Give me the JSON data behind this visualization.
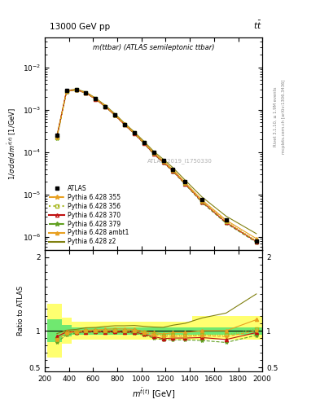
{
  "title_left": "13000 GeV pp",
  "title_right": "tt",
  "watermark": "ATLAS_2019_I1750330",
  "rivet_label": "Rivet 3.1.10, ≥ 1.9M events",
  "mcplots_label": "mcplots.cern.ch [arXiv:1306.3436]",
  "obs_label": "m(ttbar) (ATLAS semileptonic ttbar)",
  "xlabel": "m^{tbar(t)} [GeV]",
  "ylabel": "1/σ dσ/d m^{tbar(t)} [1/GeV]",
  "ratio_ylabel": "Ratio to ATLAS",
  "x_data": [
    300,
    380,
    460,
    540,
    620,
    700,
    780,
    860,
    940,
    1020,
    1100,
    1180,
    1260,
    1360,
    1500,
    1700,
    1950
  ],
  "atlas_y": [
    0.00025,
    0.0028,
    0.003,
    0.0025,
    0.0018,
    0.0012,
    0.00075,
    0.00045,
    0.00028,
    0.00017,
    0.0001,
    6.5e-05,
    4e-05,
    2e-05,
    7.5e-06,
    2.5e-06,
    8e-07
  ],
  "atlas_yerr": [
    3e-05,
    0.0002,
    0.0002,
    0.00015,
    0.0001,
    7e-05,
    4e-05,
    2.5e-05,
    1.5e-05,
    1e-05,
    6e-06,
    4e-06,
    2.5e-06,
    1.2e-06,
    5e-07,
    1.8e-07,
    6e-08
  ],
  "py355_y": [
    0.00022,
    0.0027,
    0.00295,
    0.0025,
    0.0018,
    0.0012,
    0.00075,
    0.00045,
    0.00028,
    0.000165,
    9.5e-05,
    6e-05,
    3.7e-05,
    1.85e-05,
    7e-06,
    2.3e-06,
    8e-07
  ],
  "py356_y": [
    0.00022,
    0.00272,
    0.00296,
    0.0025,
    0.0018,
    0.0012,
    0.00076,
    0.00045,
    0.00028,
    0.000166,
    9.6e-05,
    6.1e-05,
    3.8e-05,
    1.86e-05,
    7.1e-06,
    2.35e-06,
    8.2e-07
  ],
  "py370_y": [
    0.00023,
    0.00275,
    0.00295,
    0.00245,
    0.00178,
    0.00118,
    0.00074,
    0.00044,
    0.000275,
    0.000162,
    9.2e-05,
    5.8e-05,
    3.6e-05,
    1.8e-05,
    6.8e-06,
    2.2e-06,
    7.8e-07
  ],
  "py379_y": [
    0.00021,
    0.00265,
    0.0029,
    0.00245,
    0.00176,
    0.00117,
    0.00073,
    0.00044,
    0.00027,
    0.00016,
    9e-05,
    5.7e-05,
    3.5e-05,
    1.75e-05,
    6.5e-06,
    2.1e-06,
    7.5e-07
  ],
  "pyambt1_y": [
    0.00023,
    0.00278,
    0.00298,
    0.00252,
    0.00182,
    0.00122,
    0.00077,
    0.00046,
    0.000285,
    0.000168,
    9.8e-05,
    6.2e-05,
    3.9e-05,
    1.95e-05,
    7.5e-06,
    2.5e-06,
    9.2e-07
  ],
  "pyz2_y": [
    0.00024,
    0.00282,
    0.00305,
    0.0026,
    0.00188,
    0.00127,
    0.0008,
    0.00048,
    0.0003,
    0.00018,
    0.000105,
    6.8e-05,
    4.3e-05,
    2.2e-05,
    8.8e-06,
    3.1e-06,
    1.2e-06
  ],
  "ratio_py355": [
    0.88,
    0.965,
    0.983,
    1.0,
    1.0,
    1.0,
    1.0,
    1.0,
    1.0,
    0.97,
    0.95,
    0.923,
    0.925,
    0.925,
    0.933,
    0.92,
    1.0
  ],
  "ratio_py356": [
    0.88,
    0.971,
    0.987,
    1.0,
    1.0,
    1.0,
    1.013,
    1.0,
    1.0,
    0.976,
    0.96,
    0.938,
    0.95,
    0.93,
    0.947,
    0.94,
    1.025
  ],
  "ratio_py370": [
    0.92,
    0.982,
    0.983,
    0.98,
    0.989,
    0.983,
    0.987,
    0.978,
    0.982,
    0.953,
    0.92,
    0.892,
    0.9,
    0.9,
    0.907,
    0.88,
    0.975
  ],
  "ratio_py379": [
    0.84,
    0.946,
    0.967,
    0.98,
    0.978,
    0.975,
    0.973,
    0.978,
    0.964,
    0.941,
    0.9,
    0.877,
    0.875,
    0.875,
    0.867,
    0.84,
    0.9375
  ],
  "ratio_pyambt1": [
    0.92,
    0.993,
    0.993,
    1.008,
    1.011,
    1.017,
    1.027,
    1.022,
    1.018,
    0.988,
    0.98,
    0.954,
    0.975,
    0.975,
    1.0,
    1.0,
    1.15
  ],
  "ratio_pyz2": [
    0.96,
    1.007,
    1.017,
    1.04,
    1.044,
    1.058,
    1.067,
    1.067,
    1.071,
    1.059,
    1.05,
    1.046,
    1.075,
    1.1,
    1.173,
    1.24,
    1.5
  ],
  "band_x_edges": [
    220,
    340,
    420,
    500,
    580,
    660,
    740,
    820,
    900,
    980,
    1060,
    1140,
    1220,
    1300,
    1420,
    1580,
    1820,
    2080
  ],
  "band_yellow_lo": [
    0.63,
    0.82,
    0.88,
    0.88,
    0.88,
    0.88,
    0.88,
    0.88,
    0.88,
    0.88,
    0.88,
    0.88,
    0.88,
    0.88,
    0.88,
    0.88,
    0.88
  ],
  "band_yellow_hi": [
    1.37,
    1.18,
    1.12,
    1.12,
    1.12,
    1.12,
    1.12,
    1.12,
    1.12,
    1.12,
    1.12,
    1.12,
    1.12,
    1.12,
    1.2,
    1.2,
    1.2
  ],
  "band_green_lo": [
    0.85,
    0.92,
    0.95,
    0.95,
    0.95,
    0.95,
    0.95,
    0.95,
    0.95,
    0.95,
    0.95,
    0.95,
    0.95,
    0.95,
    0.95,
    0.95,
    0.95
  ],
  "band_green_hi": [
    1.15,
    1.08,
    1.05,
    1.05,
    1.05,
    1.05,
    1.05,
    1.05,
    1.05,
    1.05,
    1.05,
    1.05,
    1.05,
    1.05,
    1.05,
    1.05,
    1.05
  ],
  "color_355": "#e8a020",
  "color_356": "#a8b820",
  "color_370": "#c01010",
  "color_379": "#60a020",
  "color_ambt1": "#e8a020",
  "color_z2": "#808010",
  "band_yellow": "#ffff70",
  "band_green": "#70e870",
  "xlim": [
    200,
    2000
  ],
  "ylim_main": [
    5e-07,
    0.05
  ],
  "ylim_ratio": [
    0.45,
    2.1
  ]
}
